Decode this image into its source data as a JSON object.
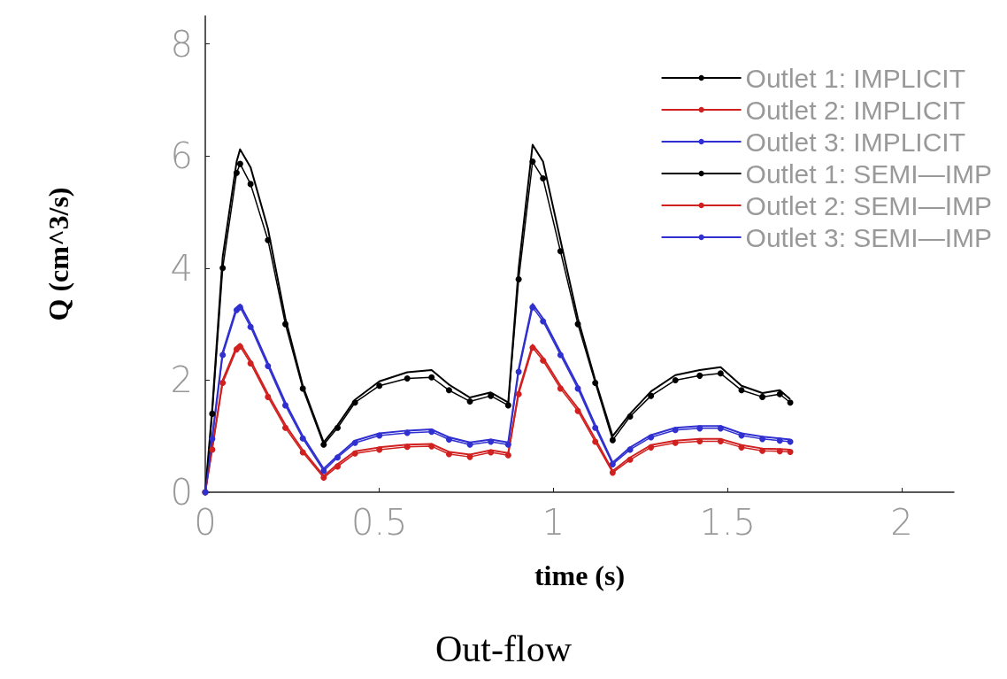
{
  "chart_data": {
    "type": "line",
    "title": "Out-flow",
    "xlabel": "time (s)",
    "ylabel": "Q (cm^3/s)",
    "x": [
      0,
      0.02,
      0.05,
      0.09,
      0.1,
      0.13,
      0.18,
      0.23,
      0.28,
      0.34,
      0.38,
      0.43,
      0.5,
      0.58,
      0.65,
      0.7,
      0.76,
      0.82,
      0.87,
      0.9,
      0.94,
      0.97,
      1.02,
      1.07,
      1.12,
      1.17,
      1.22,
      1.28,
      1.35,
      1.42,
      1.48,
      1.54,
      1.6,
      1.65,
      1.68
    ],
    "series": [
      {
        "name": "Outlet 1: IMPLICIT",
        "color": "#000000",
        "marker": "none",
        "values": [
          0,
          1.5,
          4.2,
          5.9,
          6.12,
          5.8,
          4.7,
          3.1,
          1.9,
          0.89,
          1.2,
          1.65,
          1.98,
          2.14,
          2.18,
          1.92,
          1.69,
          1.78,
          1.6,
          4.0,
          6.2,
          5.9,
          4.5,
          3.1,
          2.0,
          1.0,
          1.4,
          1.8,
          2.09,
          2.18,
          2.23,
          1.9,
          1.77,
          1.82,
          1.66
        ]
      },
      {
        "name": "Outlet 2: IMPLICIT",
        "color": "#d02020",
        "marker": "none",
        "values": [
          0,
          0.8,
          2.0,
          2.6,
          2.65,
          2.35,
          1.75,
          1.2,
          0.75,
          0.29,
          0.5,
          0.73,
          0.8,
          0.85,
          0.86,
          0.72,
          0.67,
          0.75,
          0.7,
          1.8,
          2.63,
          2.4,
          1.9,
          1.5,
          0.95,
          0.38,
          0.62,
          0.84,
          0.92,
          0.95,
          0.95,
          0.84,
          0.78,
          0.77,
          0.76
        ]
      },
      {
        "name": "Outlet 3: IMPLICIT",
        "color": "#3030d0",
        "marker": "none",
        "values": [
          0,
          1.0,
          2.5,
          3.3,
          3.35,
          3.0,
          2.3,
          1.6,
          1.0,
          0.42,
          0.65,
          0.92,
          1.05,
          1.1,
          1.12,
          0.98,
          0.89,
          0.94,
          0.89,
          2.2,
          3.36,
          3.1,
          2.5,
          1.9,
          1.2,
          0.53,
          0.8,
          1.02,
          1.15,
          1.18,
          1.18,
          1.05,
          0.99,
          0.96,
          0.94
        ]
      },
      {
        "name": "Outlet 1: SEMI—IMP",
        "color": "#000000",
        "marker": "circle",
        "values": [
          0,
          1.4,
          4.0,
          5.7,
          5.86,
          5.5,
          4.5,
          3.0,
          1.85,
          0.85,
          1.15,
          1.6,
          1.9,
          2.03,
          2.05,
          1.82,
          1.62,
          1.72,
          1.55,
          3.8,
          5.9,
          5.6,
          4.3,
          3.0,
          1.95,
          0.93,
          1.35,
          1.72,
          2.0,
          2.08,
          2.12,
          1.82,
          1.7,
          1.75,
          1.6
        ]
      },
      {
        "name": "Outlet 2: SEMI—IMP",
        "color": "#d02020",
        "marker": "circle",
        "values": [
          0,
          0.76,
          1.95,
          2.55,
          2.6,
          2.3,
          1.7,
          1.15,
          0.71,
          0.26,
          0.46,
          0.69,
          0.76,
          0.81,
          0.82,
          0.68,
          0.63,
          0.71,
          0.66,
          1.75,
          2.58,
          2.35,
          1.85,
          1.45,
          0.9,
          0.35,
          0.58,
          0.8,
          0.88,
          0.91,
          0.91,
          0.8,
          0.74,
          0.73,
          0.72
        ]
      },
      {
        "name": "Outlet 3: SEMI—IMP",
        "color": "#3030d0",
        "marker": "circle",
        "values": [
          0,
          0.95,
          2.45,
          3.25,
          3.3,
          2.95,
          2.25,
          1.55,
          0.96,
          0.38,
          0.62,
          0.88,
          1.01,
          1.06,
          1.08,
          0.94,
          0.85,
          0.9,
          0.85,
          2.15,
          3.3,
          3.05,
          2.45,
          1.85,
          1.15,
          0.5,
          0.76,
          0.98,
          1.11,
          1.14,
          1.14,
          1.01,
          0.95,
          0.92,
          0.9
        ]
      }
    ],
    "xlim": [
      0,
      2.15
    ],
    "xticks": [
      0,
      0.5,
      1,
      1.5,
      2
    ],
    "ylim": [
      0,
      8.5
    ],
    "yticks": [
      0,
      2,
      4,
      6,
      8
    ],
    "legend": "top right"
  }
}
